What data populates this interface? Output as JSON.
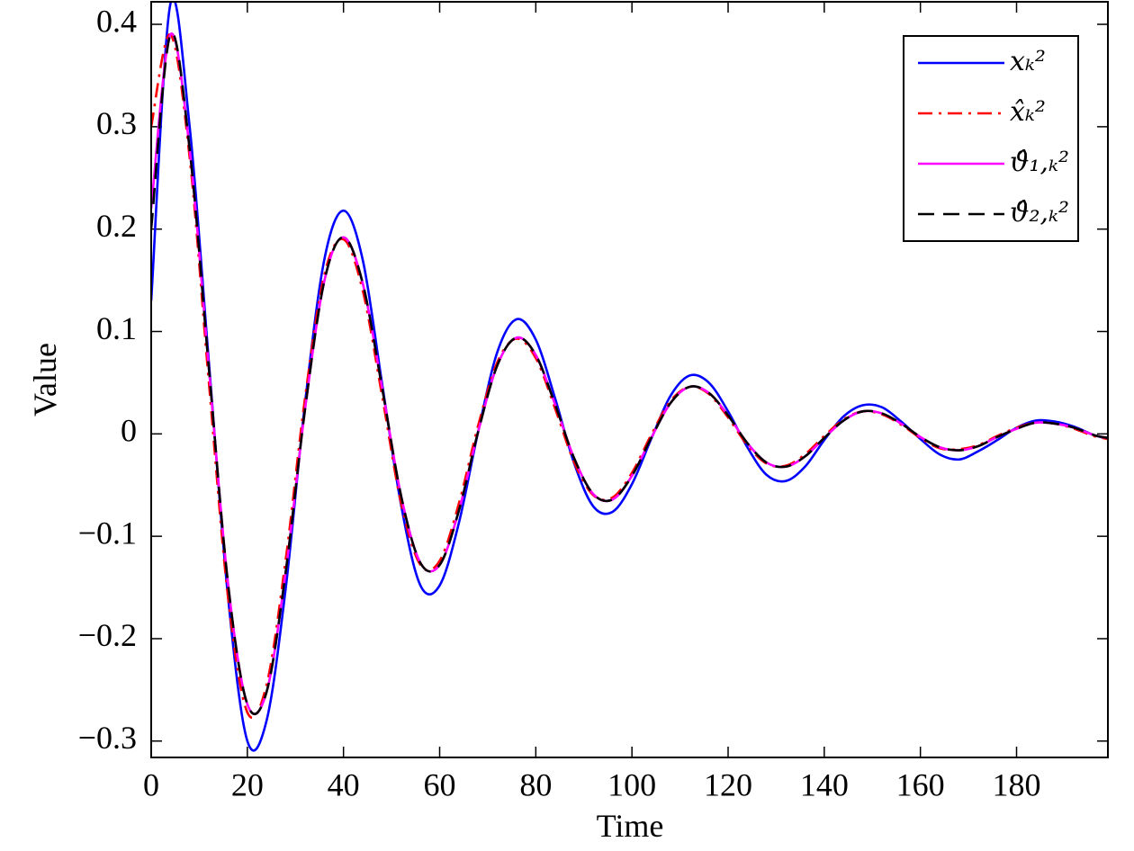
{
  "chart_data": {
    "type": "line",
    "xlabel": "Time",
    "ylabel": "Value",
    "xlim": [
      0,
      199
    ],
    "ylim": [
      -0.316,
      0.422
    ],
    "xticks": [
      0,
      20,
      40,
      60,
      80,
      100,
      120,
      140,
      160,
      180
    ],
    "yticks": [
      {
        "value": -0.3,
        "label": "−0.3"
      },
      {
        "value": -0.2,
        "label": "−0.2"
      },
      {
        "value": -0.1,
        "label": "−0.1"
      },
      0,
      0.1,
      0.2,
      0.3,
      0.4
    ],
    "grid": false,
    "legend": "upper right",
    "x": [
      0,
      4,
      8,
      12,
      16,
      20,
      24,
      28,
      32,
      36,
      40,
      44,
      48,
      52,
      56,
      60,
      64,
      68,
      72,
      76,
      80,
      84,
      88,
      92,
      96,
      100,
      104,
      108,
      112,
      116,
      120,
      124,
      128,
      132,
      136,
      140,
      144,
      148,
      152,
      156,
      160,
      164,
      168,
      172,
      176,
      180,
      184,
      188,
      192,
      196,
      199
    ],
    "series": [
      {
        "name": "xₖ²",
        "color": "#0000ff",
        "style": "solid",
        "values": [
          0.13,
          0.42,
          0.3,
          0.07,
          -0.16,
          -0.3,
          -0.28,
          -0.15,
          0.03,
          0.17,
          0.218,
          0.17,
          0.05,
          -0.07,
          -0.148,
          -0.148,
          -0.087,
          0.002,
          0.08,
          0.112,
          0.092,
          0.035,
          -0.029,
          -0.071,
          -0.076,
          -0.049,
          -0.005,
          0.037,
          0.057,
          0.05,
          0.022,
          -0.013,
          -0.04,
          -0.046,
          -0.032,
          -0.006,
          0.017,
          0.028,
          0.026,
          0.012,
          -0.005,
          -0.02,
          -0.025,
          -0.017,
          -0.006,
          0.006,
          0.013,
          0.012,
          0.007,
          -0.001,
          -0.005
        ]
      },
      {
        "name": "x̂ₖ²",
        "color": "#ff0000",
        "style": "dashdot",
        "values": [
          0.3,
          0.39,
          0.27,
          0.05,
          -0.16,
          -0.272,
          -0.245,
          -0.122,
          0.035,
          0.155,
          0.19,
          0.14,
          0.038,
          -0.068,
          -0.128,
          -0.124,
          -0.068,
          0.008,
          0.07,
          0.093,
          0.074,
          0.025,
          -0.028,
          -0.06,
          -0.062,
          -0.038,
          -0.001,
          0.032,
          0.046,
          0.039,
          0.016,
          -0.011,
          -0.029,
          -0.031,
          -0.02,
          -0.002,
          0.014,
          0.022,
          0.019,
          0.009,
          -0.004,
          -0.014,
          -0.015,
          -0.011,
          -0.002,
          0.006,
          0.011,
          0.01,
          0.005,
          -0.002,
          -0.005
        ]
      },
      {
        "name": "ϑ̂₁,ₖ²",
        "color": "#ff00ff",
        "style": "solid",
        "values": [
          0.22,
          0.39,
          0.278,
          0.064,
          -0.147,
          -0.264,
          -0.252,
          -0.134,
          0.024,
          0.149,
          0.192,
          0.147,
          0.046,
          -0.061,
          -0.126,
          -0.128,
          -0.075,
          0.002,
          0.067,
          0.094,
          0.077,
          0.029,
          -0.024,
          -0.059,
          -0.064,
          -0.041,
          -0.004,
          0.03,
          0.046,
          0.04,
          0.018,
          -0.009,
          -0.028,
          -0.032,
          -0.022,
          -0.004,
          0.013,
          0.022,
          0.02,
          0.01,
          -0.003,
          -0.013,
          -0.016,
          -0.012,
          -0.003,
          0.005,
          0.011,
          0.01,
          0.006,
          -0.001,
          -0.004
        ]
      },
      {
        "name": "ϑ̂₂,ₖ²",
        "color": "#000000",
        "style": "dashed",
        "values": [
          0.2,
          0.39,
          0.278,
          0.064,
          -0.147,
          -0.264,
          -0.252,
          -0.134,
          0.024,
          0.149,
          0.192,
          0.147,
          0.046,
          -0.061,
          -0.126,
          -0.128,
          -0.075,
          0.002,
          0.067,
          0.094,
          0.077,
          0.029,
          -0.024,
          -0.059,
          -0.064,
          -0.041,
          -0.004,
          0.03,
          0.046,
          0.04,
          0.018,
          -0.009,
          -0.028,
          -0.032,
          -0.022,
          -0.004,
          0.013,
          0.022,
          0.02,
          0.01,
          -0.003,
          -0.013,
          -0.016,
          -0.012,
          -0.003,
          0.005,
          0.011,
          0.01,
          0.006,
          -0.001,
          -0.004
        ]
      }
    ]
  }
}
